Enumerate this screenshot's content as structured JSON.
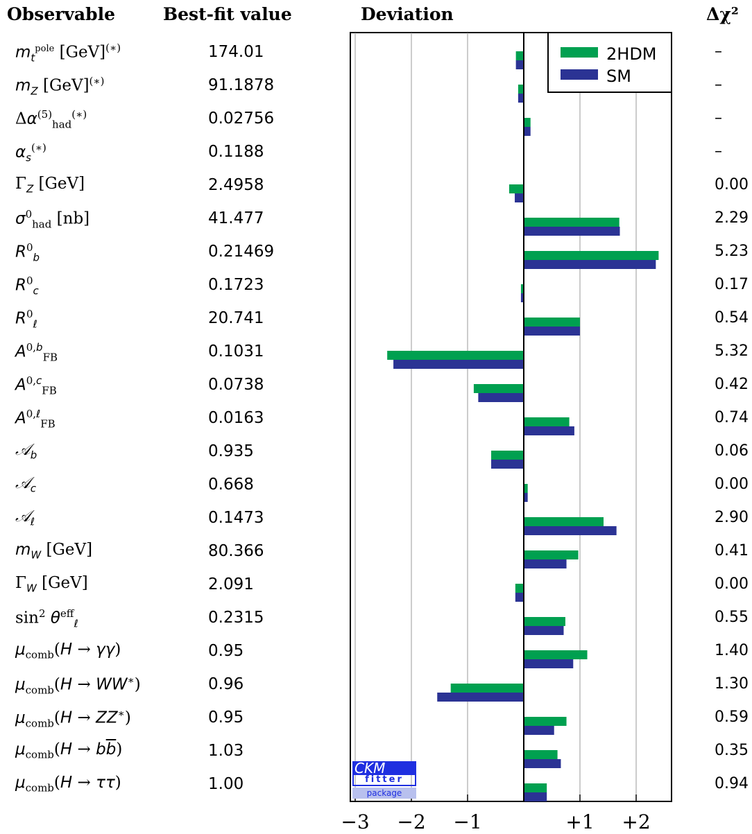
{
  "headers": {
    "observable": "Observable",
    "best_fit": "Best-fit value",
    "deviation": "Deviation",
    "dchi2": "Δχ²"
  },
  "rows": [
    {
      "label": "m_t^pole [GeV]^(*)",
      "value": "174.01",
      "dchi2": "–"
    },
    {
      "label": "m_Z [GeV]^(*)",
      "value": "91.1878",
      "dchi2": "–"
    },
    {
      "label": "Δα_had^(5)(*)",
      "value": "0.02756",
      "dchi2": "–"
    },
    {
      "label": "α_s^(*)",
      "value": "0.1188",
      "dchi2": "–"
    },
    {
      "label": "Γ_Z [GeV]",
      "value": "2.4958",
      "dchi2": "0.00"
    },
    {
      "label": "σ_had^0 [nb]",
      "value": "41.477",
      "dchi2": "2.29"
    },
    {
      "label": "R_b^0",
      "value": "0.21469",
      "dchi2": "5.23"
    },
    {
      "label": "R_c^0",
      "value": "0.1723",
      "dchi2": "0.17"
    },
    {
      "label": "R_ℓ^0",
      "value": "20.741",
      "dchi2": "0.54"
    },
    {
      "label": "A_FB^0,b",
      "value": "0.1031",
      "dchi2": "5.32"
    },
    {
      "label": "A_FB^0,c",
      "value": "0.0738",
      "dchi2": "0.42"
    },
    {
      "label": "A_FB^0,ℓ",
      "value": "0.0163",
      "dchi2": "0.74"
    },
    {
      "label": "𝒜_b",
      "value": "0.935",
      "dchi2": "0.06"
    },
    {
      "label": "𝒜_c",
      "value": "0.668",
      "dchi2": "0.00"
    },
    {
      "label": "𝒜_ℓ",
      "value": "0.1473",
      "dchi2": "2.90"
    },
    {
      "label": "m_W [GeV]",
      "value": "80.366",
      "dchi2": "0.41"
    },
    {
      "label": "Γ_W [GeV]",
      "value": "2.091",
      "dchi2": "0.00"
    },
    {
      "label": "sin²θ_ℓ^eff",
      "value": "0.2315",
      "dchi2": "0.55"
    },
    {
      "label": "μ_comb(H → γγ)",
      "value": "0.95",
      "dchi2": "1.40"
    },
    {
      "label": "μ_comb(H → WW*)",
      "value": "0.96",
      "dchi2": "1.30"
    },
    {
      "label": "μ_comb(H → ZZ*)",
      "value": "0.95",
      "dchi2": "0.59"
    },
    {
      "label": "μ_comb(H → bb̄)",
      "value": "1.03",
      "dchi2": "0.35"
    },
    {
      "label": "μ_comb(H → ττ)",
      "value": "1.00",
      "dchi2": "0.94"
    }
  ],
  "logo": {
    "line1": "CKM",
    "line2": "fitter",
    "line3": "package"
  },
  "chart_data": {
    "type": "bar",
    "orientation": "horizontal",
    "categories": [
      "m_t^pole",
      "m_Z",
      "Δα_had^(5)",
      "α_s",
      "Γ_Z",
      "σ_had^0",
      "R_b^0",
      "R_c^0",
      "R_ℓ^0",
      "A_FB^0,b",
      "A_FB^0,c",
      "A_FB^0,ℓ",
      "𝒜_b",
      "𝒜_c",
      "𝒜_ℓ",
      "m_W",
      "Γ_W",
      "sin²θ_ℓ^eff",
      "μ_comb(H→γγ)",
      "μ_comb(H→WW*)",
      "μ_comb(H→ZZ*)",
      "μ_comb(H→bb̄)",
      "μ_comb(H→ττ)"
    ],
    "series": [
      {
        "name": "2HDM",
        "color": "#00a050",
        "values": [
          -0.14,
          -0.1,
          0.12,
          0.0,
          -0.26,
          1.7,
          2.4,
          -0.05,
          1.0,
          -2.43,
          -0.89,
          0.81,
          -0.58,
          0.07,
          1.42,
          0.97,
          -0.15,
          0.74,
          1.13,
          -1.3,
          0.76,
          0.6,
          0.41
        ]
      },
      {
        "name": "SM",
        "color": "#2b3394",
        "values": [
          -0.14,
          -0.1,
          0.12,
          0.0,
          -0.16,
          1.71,
          2.35,
          -0.05,
          1.0,
          -2.32,
          -0.81,
          0.9,
          -0.58,
          0.07,
          1.65,
          0.76,
          -0.15,
          0.71,
          0.88,
          -1.54,
          0.54,
          0.66,
          0.41
        ]
      }
    ],
    "xlim": [
      -3.1,
      2.6
    ],
    "xticks": [
      -3,
      -2,
      -1,
      1,
      2
    ],
    "xtick_labels": [
      "−3",
      "−2",
      "−1",
      "+1",
      "+2"
    ],
    "grid": "vertical",
    "legend": "top-right"
  }
}
